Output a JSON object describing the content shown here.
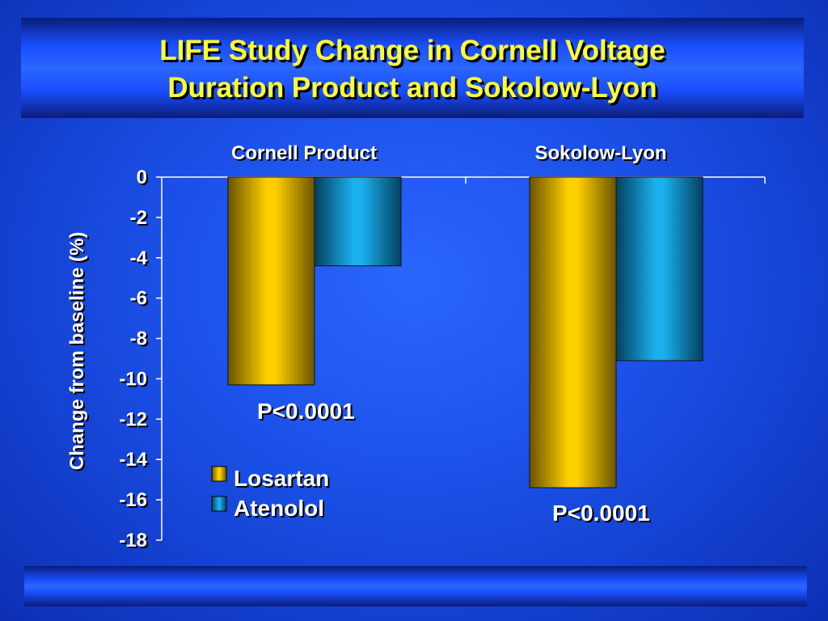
{
  "slide": {
    "title_line1": "LIFE Study Change in Cornell Voltage",
    "title_line2": "Duration Product and Sokolow-Lyon"
  },
  "chart_data": {
    "type": "bar",
    "categories": [
      "Cornell Product",
      "Sokolow-Lyon"
    ],
    "series": [
      {
        "name": "Losartan",
        "values": [
          -10.3,
          -15.4
        ],
        "color": "#f5c400"
      },
      {
        "name": "Atenolol",
        "values": [
          -4.4,
          -9.1
        ],
        "color": "#1aa6e0"
      }
    ],
    "ylabel": "Change from baseline (%)",
    "ylim": [
      -18,
      0
    ],
    "yticks": [
      "0",
      "-2",
      "-4",
      "-6",
      "-8",
      "-10",
      "-12",
      "-14",
      "-16",
      "-18"
    ],
    "annotations": [
      "P<0.0001",
      "P<0.0001"
    ],
    "category_labels_position": "top",
    "legend_position": "lower-middle"
  }
}
